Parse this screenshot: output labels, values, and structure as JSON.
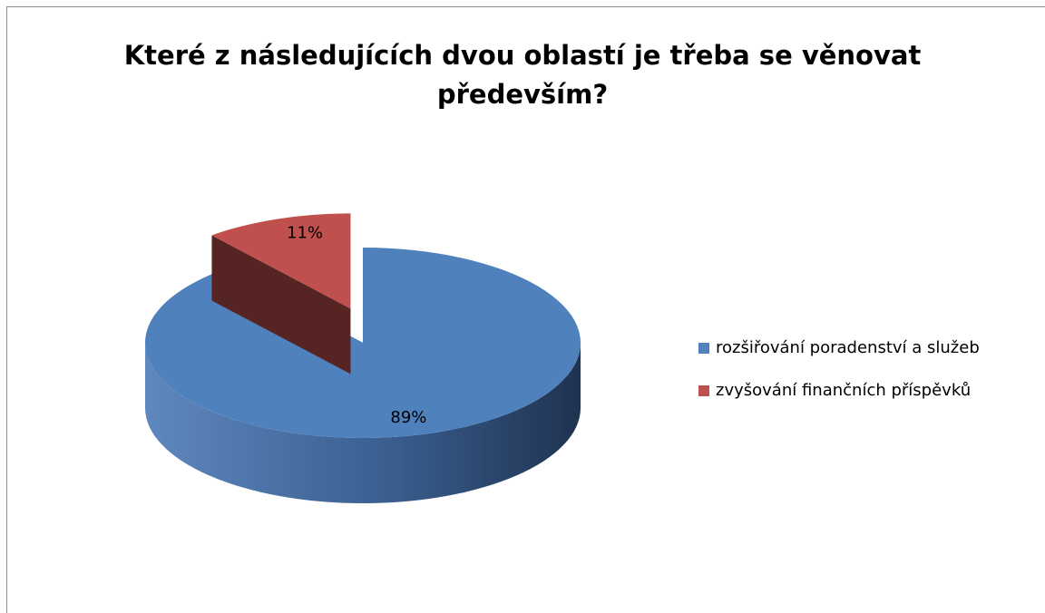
{
  "chart_data": {
    "type": "pie",
    "title": "Které z následujících dvou oblastí je třeba se věnovat především?",
    "categories": [
      "rozšiřování poradenství a služeb",
      "zvyšování finančních příspěvků"
    ],
    "values": [
      89,
      11
    ],
    "value_labels": [
      "89%",
      "11%"
    ],
    "colors": [
      "#4f81bd",
      "#c0504d"
    ],
    "legend": "right"
  }
}
